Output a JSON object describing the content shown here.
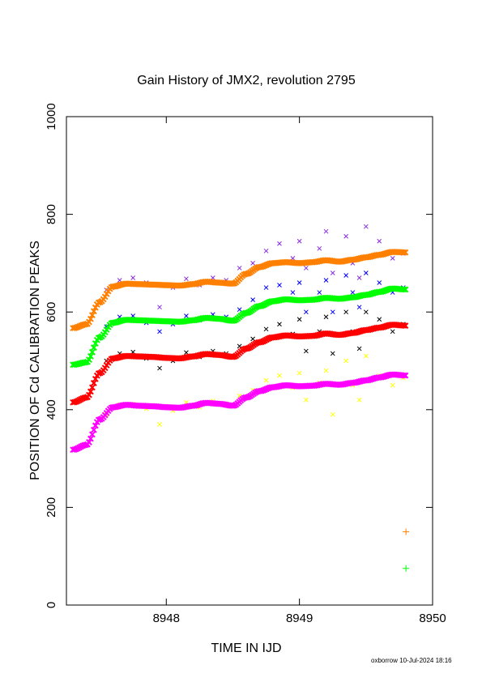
{
  "colors": {
    "axis": "#000000",
    "orange": "#ff8000",
    "purple": "#8a2be2",
    "green": "#00ff00",
    "blue": "#0000ff",
    "red": "#ff0000",
    "black": "#000000",
    "magenta": "#ff00ff",
    "yellow": "#ffff00"
  },
  "chart_data": {
    "type": "scatter",
    "title": "Gain History of JMX2, revolution 2795",
    "xlabel": "TIME IN IJD",
    "ylabel": "POSITION OF Cd CALIBRATION PEAKS",
    "xlim": [
      8947.25,
      8950.0
    ],
    "ylim": [
      0,
      1000
    ],
    "xticks": [
      8948,
      8949,
      8950
    ],
    "xtick_labels": [
      "8948",
      "8949",
      "8950"
    ],
    "yticks": [
      0,
      200,
      400,
      600,
      800,
      1000
    ],
    "ytick_labels": [
      "0",
      "200",
      "400",
      "600",
      "800",
      "1000"
    ],
    "grid": false,
    "legend": "none",
    "series": [
      {
        "color": "#ff8000",
        "marker": "x",
        "kind": "smooth",
        "x": [
          8947.3,
          8947.4,
          8947.5,
          8947.6,
          8947.7,
          8947.8,
          8947.9,
          8948.0,
          8948.1,
          8948.2,
          8948.3,
          8948.4,
          8948.5,
          8948.6,
          8948.7,
          8948.8,
          8948.9,
          8949.0,
          8949.1,
          8949.2,
          8949.3,
          8949.4,
          8949.5,
          8949.6,
          8949.7,
          8949.8
        ],
        "y": [
          567,
          575,
          620,
          652,
          658,
          657,
          656,
          655,
          654,
          657,
          662,
          660,
          658,
          678,
          692,
          700,
          702,
          700,
          702,
          706,
          703,
          707,
          712,
          717,
          723,
          722
        ]
      },
      {
        "color": "#8a2be2",
        "marker": "x",
        "kind": "scatter",
        "x": [
          8947.55,
          8947.65,
          8947.75,
          8947.85,
          8947.95,
          8948.05,
          8948.15,
          8948.25,
          8948.35,
          8948.45,
          8948.55,
          8948.65,
          8948.75,
          8948.85,
          8948.95,
          8949.0,
          8949.05,
          8949.15,
          8949.2,
          8949.25,
          8949.35,
          8949.4,
          8949.45,
          8949.5,
          8949.6,
          8949.7,
          8949.78
        ],
        "y": [
          645,
          665,
          670,
          660,
          610,
          650,
          668,
          655,
          670,
          665,
          690,
          700,
          725,
          740,
          710,
          745,
          690,
          730,
          765,
          680,
          755,
          700,
          670,
          775,
          745,
          710,
          720
        ]
      },
      {
        "color": "#00ff00",
        "marker": "x",
        "kind": "smooth",
        "x": [
          8947.3,
          8947.4,
          8947.5,
          8947.6,
          8947.7,
          8947.8,
          8947.9,
          8948.0,
          8948.1,
          8948.2,
          8948.3,
          8948.4,
          8948.5,
          8948.6,
          8948.7,
          8948.8,
          8948.9,
          8949.0,
          8949.1,
          8949.2,
          8949.3,
          8949.4,
          8949.5,
          8949.6,
          8949.7,
          8949.8
        ],
        "y": [
          492,
          497,
          548,
          578,
          584,
          583,
          582,
          581,
          580,
          583,
          588,
          586,
          582,
          598,
          612,
          622,
          626,
          624,
          625,
          629,
          627,
          630,
          635,
          641,
          648,
          646
        ]
      },
      {
        "color": "#0000ff",
        "marker": "x",
        "kind": "scatter",
        "x": [
          8947.55,
          8947.65,
          8947.75,
          8947.85,
          8947.95,
          8948.05,
          8948.15,
          8948.25,
          8948.35,
          8948.45,
          8948.55,
          8948.65,
          8948.75,
          8948.85,
          8948.95,
          8949.0,
          8949.05,
          8949.15,
          8949.2,
          8949.25,
          8949.35,
          8949.4,
          8949.45,
          8949.5,
          8949.6,
          8949.7,
          8949.78
        ],
        "y": [
          570,
          590,
          592,
          578,
          560,
          575,
          592,
          583,
          595,
          590,
          605,
          625,
          650,
          655,
          640,
          660,
          600,
          640,
          665,
          600,
          675,
          640,
          610,
          680,
          660,
          640,
          650
        ]
      },
      {
        "color": "#ff0000",
        "marker": "x",
        "kind": "smooth",
        "x": [
          8947.3,
          8947.4,
          8947.5,
          8947.6,
          8947.7,
          8947.8,
          8947.9,
          8948.0,
          8948.1,
          8948.2,
          8948.3,
          8948.4,
          8948.5,
          8948.6,
          8948.7,
          8948.8,
          8948.9,
          8949.0,
          8949.1,
          8949.2,
          8949.3,
          8949.4,
          8949.5,
          8949.6,
          8949.7,
          8949.8
        ],
        "y": [
          415,
          425,
          475,
          505,
          510,
          509,
          508,
          506,
          505,
          509,
          514,
          512,
          508,
          525,
          538,
          548,
          552,
          550,
          551,
          556,
          553,
          557,
          563,
          568,
          574,
          572
        ]
      },
      {
        "color": "#000000",
        "marker": "x",
        "kind": "scatter",
        "x": [
          8947.55,
          8947.65,
          8947.75,
          8947.85,
          8947.95,
          8948.05,
          8948.15,
          8948.25,
          8948.35,
          8948.45,
          8948.55,
          8948.65,
          8948.75,
          8948.85,
          8948.95,
          8949.0,
          8949.05,
          8949.15,
          8949.2,
          8949.25,
          8949.35,
          8949.4,
          8949.45,
          8949.5,
          8949.6,
          8949.7,
          8949.78
        ],
        "y": [
          500,
          515,
          518,
          505,
          485,
          500,
          517,
          508,
          520,
          515,
          530,
          545,
          565,
          575,
          555,
          585,
          520,
          560,
          590,
          515,
          600,
          560,
          525,
          600,
          585,
          560,
          575
        ]
      },
      {
        "color": "#ff00ff",
        "marker": "x",
        "kind": "smooth",
        "x": [
          8947.3,
          8947.4,
          8947.5,
          8947.6,
          8947.7,
          8947.8,
          8947.9,
          8948.0,
          8948.1,
          8948.2,
          8948.3,
          8948.4,
          8948.5,
          8948.6,
          8948.7,
          8948.8,
          8948.9,
          8949.0,
          8949.1,
          8949.2,
          8949.3,
          8949.4,
          8949.5,
          8949.6,
          8949.7,
          8949.8
        ],
        "y": [
          318,
          328,
          380,
          405,
          410,
          408,
          407,
          405,
          404,
          408,
          414,
          412,
          408,
          425,
          438,
          446,
          450,
          448,
          449,
          453,
          451,
          455,
          460,
          466,
          472,
          470
        ]
      },
      {
        "color": "#ffff00",
        "marker": "x",
        "kind": "scatter",
        "x": [
          8947.55,
          8947.65,
          8947.75,
          8947.85,
          8947.95,
          8948.05,
          8948.15,
          8948.25,
          8948.35,
          8948.45,
          8948.55,
          8948.65,
          8948.75,
          8948.85,
          8948.95,
          8949.0,
          8949.05,
          8949.15,
          8949.2,
          8949.25,
          8949.35,
          8949.4,
          8949.45,
          8949.5,
          8949.6,
          8949.7,
          8949.78
        ],
        "y": [
          390,
          410,
          412,
          402,
          370,
          398,
          415,
          405,
          418,
          412,
          428,
          440,
          460,
          470,
          445,
          475,
          420,
          455,
          480,
          390,
          500,
          450,
          420,
          510,
          470,
          450,
          465
        ]
      },
      {
        "color": "#ff8000",
        "marker": "+",
        "kind": "point",
        "x": [
          8949.8
        ],
        "y": [
          150
        ]
      },
      {
        "color": "#00ff00",
        "marker": "+",
        "kind": "point",
        "x": [
          8949.8
        ],
        "y": [
          75
        ]
      }
    ]
  },
  "footer": "oxborrow 10-Jul-2024 18:16"
}
